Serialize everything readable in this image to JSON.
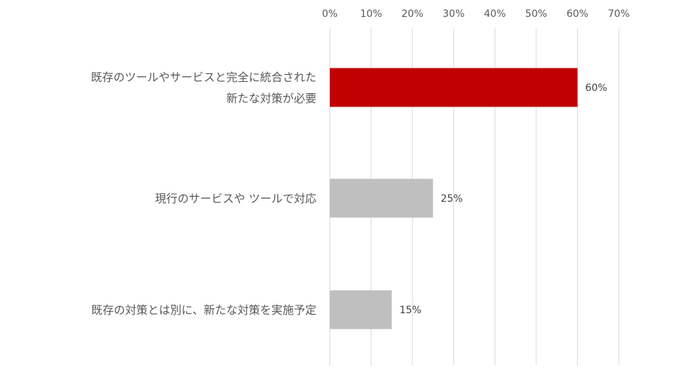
{
  "chart_data": {
    "type": "bar",
    "orientation": "horizontal",
    "xlim": [
      0,
      70
    ],
    "tick_step": 10,
    "tick_labels": [
      "0%",
      "10%",
      "20%",
      "30%",
      "40%",
      "50%",
      "60%",
      "70%"
    ],
    "grid": true,
    "categories": [
      [
        "既存のツールやサービスと完全に統合された",
        "新たな対策が必要"
      ],
      [
        "現行のサービスや ツールで対応"
      ],
      [
        "既存の対策とは別に、新たな対策を実施予定"
      ]
    ],
    "values": [
      60,
      25,
      15
    ],
    "data_labels": [
      "60%",
      "25%",
      "15%"
    ],
    "colors": [
      "#c00000",
      "#bfbfbf",
      "#bfbfbf"
    ],
    "colors_meta": {
      "gridline": "#d9d9d9",
      "tick_text": "#595959",
      "category_text": "#595959",
      "value_text": "#404040"
    }
  }
}
